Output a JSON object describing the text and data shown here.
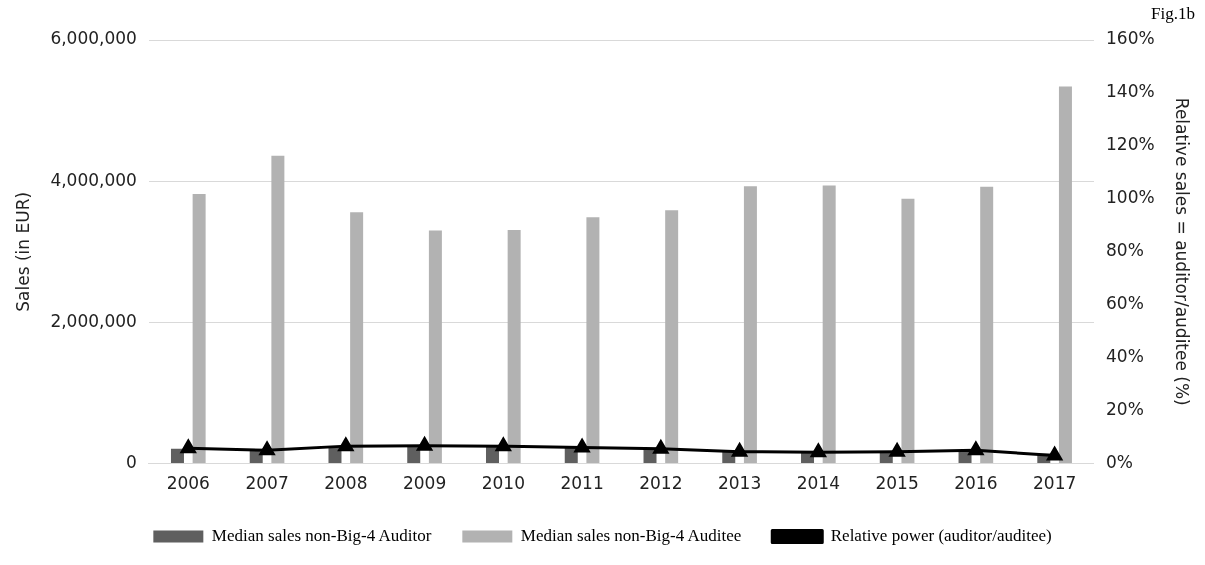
{
  "chart_data": {
    "type": "bar",
    "categories": [
      "2006",
      "2007",
      "2008",
      "2009",
      "2010",
      "2011",
      "2012",
      "2013",
      "2014",
      "2015",
      "2016",
      "2017"
    ],
    "series": [
      {
        "name": "Median sales non-Big-4 Auditor",
        "color": "#5f5f5f",
        "values": [
          210000,
          190000,
          250000,
          250000,
          250000,
          230000,
          220000,
          180000,
          170000,
          180000,
          190000,
          140000
        ]
      },
      {
        "name": "Median sales non-Big-4 Auditee",
        "color": "#b2b2b2",
        "values": [
          3820000,
          4360000,
          3560000,
          3300000,
          3310000,
          3490000,
          3590000,
          3930000,
          3940000,
          3750000,
          3920000,
          5340000
        ]
      },
      {
        "name": "Relative power (auditor/auditee)",
        "type": "line",
        "axis": "y2",
        "color": "#000000",
        "marker": "triangle",
        "values": [
          5.8,
          5.0,
          6.6,
          6.7,
          6.6,
          6.1,
          5.6,
          4.5,
          4.3,
          4.5,
          5.0,
          3.1
        ]
      }
    ],
    "ylabel": "Sales (in EUR)",
    "y2label": "Relative sales = auditor/auditee (%)",
    "ylim": [
      0,
      6000000
    ],
    "yticks": [
      {
        "value": 0,
        "label": "0"
      },
      {
        "value": 2000000,
        "label": "2,000,000"
      },
      {
        "value": 4000000,
        "label": "4,000,000"
      },
      {
        "value": 6000000,
        "label": "6,000,000"
      }
    ],
    "y2lim": [
      0,
      160
    ],
    "y2ticks": [
      {
        "value": 0,
        "label": "0%"
      },
      {
        "value": 20,
        "label": "20%"
      },
      {
        "value": 40,
        "label": "40%"
      },
      {
        "value": 60,
        "label": "60%"
      },
      {
        "value": 80,
        "label": "80%"
      },
      {
        "value": 100,
        "label": "100%"
      },
      {
        "value": 120,
        "label": "120%"
      },
      {
        "value": 140,
        "label": "140%"
      },
      {
        "value": 160,
        "label": "160%"
      }
    ],
    "grid": "y",
    "legend": "bottom",
    "line_style": "solid",
    "annotations": [
      "Fig.1b"
    ]
  }
}
